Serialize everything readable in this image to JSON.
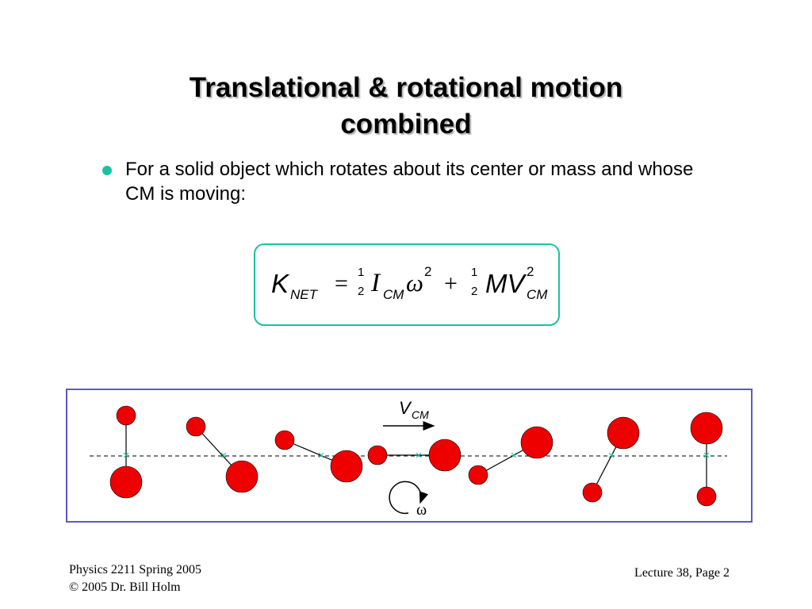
{
  "slide": {
    "title_line1": "Translational & rotational motion",
    "title_line2": "combined",
    "bullet": "For a solid object which rotates about its center or mass and whose CM is moving:"
  },
  "formula": {
    "k": "K",
    "k_sub": "NET",
    "equals": "=",
    "half1_num": "1",
    "half1_den": "2",
    "i": "I",
    "i_sub": "CM",
    "omega": "ω",
    "omega_sup": "2",
    "plus": "+",
    "half2_num": "1",
    "half2_den": "2",
    "mv": "MV",
    "v_sup": "2",
    "v_sub": "CM"
  },
  "diagram": {
    "velocity_label": "V",
    "velocity_sub": "CM",
    "omega_label": "ω",
    "colors": {
      "ball": "#ee0000",
      "cm_marker": "#19c3a0",
      "frame": "#5a5ac8",
      "accent": "#19c3a0"
    }
  },
  "footer": {
    "course": "Physics 2211 Spring 2005",
    "copyright": "© 2005 Dr. Bill Holm",
    "page": "Lecture 38, Page 2"
  }
}
